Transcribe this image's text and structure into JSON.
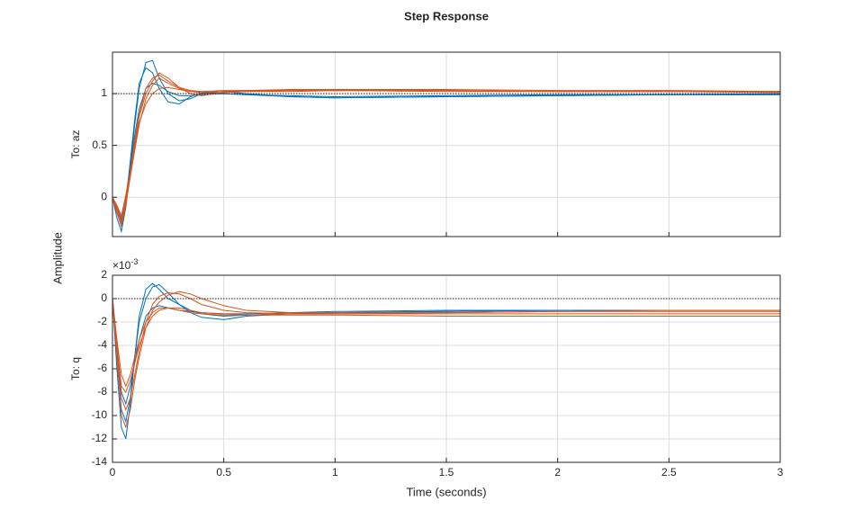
{
  "title": "Step Response",
  "xlabel": "Time (seconds)",
  "ylabel": "Amplitude",
  "chart_data": [
    {
      "type": "line",
      "ylabel": "To: az",
      "xlim": [
        0,
        3
      ],
      "ylim": [
        -0.38,
        1.4
      ],
      "xticks": [
        0,
        0.5,
        1,
        1.5,
        2,
        2.5,
        3
      ],
      "yticks": [
        0,
        0.5,
        1
      ],
      "show_xtick_labels": false,
      "grid": true,
      "reference_line": 1,
      "x": [
        0,
        0.02,
        0.04,
        0.06,
        0.08,
        0.1,
        0.12,
        0.15,
        0.18,
        0.21,
        0.25,
        0.3,
        0.35,
        0.4,
        0.5,
        0.6,
        0.8,
        1,
        1.5,
        2,
        2.5,
        3
      ],
      "series": [
        {
          "color": "#0072BD",
          "values": [
            0,
            -0.2,
            -0.33,
            -0.1,
            0.3,
            0.7,
            1.05,
            1.3,
            1.32,
            1.15,
            1.0,
            0.93,
            0.95,
            1.0,
            1.02,
            1.0,
            0.97,
            0.96,
            0.97,
            0.98,
            0.99,
            0.99
          ]
        },
        {
          "color": "#0072BD",
          "values": [
            0,
            -0.15,
            -0.28,
            -0.05,
            0.35,
            0.75,
            1.1,
            1.25,
            1.2,
            1.05,
            0.92,
            0.9,
            0.97,
            1.01,
            1.0,
            0.99,
            0.97,
            0.96,
            0.97,
            0.98,
            0.99,
            0.99
          ]
        },
        {
          "color": "#0072BD",
          "values": [
            0,
            -0.1,
            -0.22,
            0,
            0.3,
            0.6,
            0.85,
            1.05,
            1.1,
            1.08,
            1.02,
            0.98,
            0.98,
            0.99,
            1.0,
            0.99,
            0.98,
            0.97,
            0.98,
            0.99,
            0.99,
            1.0
          ]
        },
        {
          "color": "#D95319",
          "values": [
            0,
            -0.12,
            -0.25,
            -0.05,
            0.25,
            0.55,
            0.8,
            1.05,
            1.15,
            1.18,
            1.12,
            1.06,
            1.03,
            1.02,
            1.03,
            1.03,
            1.04,
            1.04,
            1.04,
            1.03,
            1.03,
            1.02
          ]
        },
        {
          "color": "#D95319",
          "values": [
            0,
            -0.1,
            -0.2,
            0,
            0.2,
            0.45,
            0.7,
            0.95,
            1.08,
            1.15,
            1.1,
            1.05,
            1.02,
            1.01,
            1.02,
            1.03,
            1.03,
            1.03,
            1.03,
            1.02,
            1.02,
            1.02
          ]
        },
        {
          "color": "#D95319",
          "values": [
            0,
            -0.15,
            -0.28,
            -0.08,
            0.2,
            0.5,
            0.78,
            1.0,
            1.12,
            1.2,
            1.15,
            1.06,
            1.0,
            0.98,
            1.01,
            1.02,
            1.03,
            1.03,
            1.03,
            1.02,
            1.02,
            1.02
          ]
        },
        {
          "color": "#D95319",
          "values": [
            0,
            -0.08,
            -0.18,
            0.02,
            0.25,
            0.5,
            0.72,
            0.9,
            1.0,
            1.05,
            1.06,
            1.04,
            1.02,
            1.01,
            1.02,
            1.02,
            1.02,
            1.03,
            1.02,
            1.02,
            1.02,
            1.01
          ]
        }
      ]
    },
    {
      "type": "line",
      "ylabel": "To: q",
      "multiplier": "×10",
      "multiplier_exponent": "-3",
      "xlim": [
        0,
        3
      ],
      "ylim": [
        -14,
        2
      ],
      "xticks": [
        0,
        0.5,
        1,
        1.5,
        2,
        2.5,
        3
      ],
      "yticks": [
        -14,
        -12,
        -10,
        -8,
        -6,
        -4,
        -2,
        0,
        2
      ],
      "show_xtick_labels": true,
      "grid": true,
      "reference_line": 0,
      "x": [
        0,
        0.02,
        0.04,
        0.06,
        0.08,
        0.1,
        0.12,
        0.15,
        0.18,
        0.21,
        0.25,
        0.3,
        0.35,
        0.4,
        0.5,
        0.6,
        0.8,
        1,
        1.5,
        2,
        2.5,
        3
      ],
      "series": [
        {
          "color": "#0072BD",
          "values": [
            0,
            -6,
            -11,
            -12,
            -9,
            -5,
            -1.5,
            0.8,
            1.3,
            0.8,
            0,
            -0.5,
            -1,
            -1.3,
            -1.5,
            -1.4,
            -1.3,
            -1.2,
            -1.1,
            -1.0,
            -1.0,
            -1.0
          ]
        },
        {
          "color": "#0072BD",
          "values": [
            0,
            -5,
            -9.5,
            -10.5,
            -8.5,
            -5,
            -2,
            0,
            1,
            1.2,
            0.5,
            -0.5,
            -1.2,
            -1.6,
            -1.8,
            -1.5,
            -1.3,
            -1.2,
            -1.1,
            -1.0,
            -1.0,
            -1.0
          ]
        },
        {
          "color": "#0072BD",
          "values": [
            0,
            -4,
            -8,
            -9,
            -7.5,
            -5.5,
            -3.5,
            -1.5,
            -0.8,
            -0.6,
            -0.8,
            -1,
            -1.1,
            -1.2,
            -1.3,
            -1.3,
            -1.2,
            -1.1,
            -1.0,
            -1.0,
            -1.0,
            -1.0
          ]
        },
        {
          "color": "#D95319",
          "values": [
            0,
            -4.5,
            -8.5,
            -9.5,
            -8.5,
            -6.5,
            -4.5,
            -2,
            -0.5,
            0.2,
            0.5,
            0.4,
            0,
            -0.5,
            -1,
            -1.2,
            -1.3,
            -1.3,
            -1.2,
            -1.1,
            -1.0,
            -1.0
          ]
        },
        {
          "color": "#D95319",
          "values": [
            0,
            -5,
            -10,
            -11,
            -9.5,
            -7,
            -5,
            -2.5,
            -1,
            -0.3,
            0.3,
            0.6,
            0.4,
            0,
            -0.6,
            -1,
            -1.2,
            -1.2,
            -1.2,
            -1.1,
            -1.1,
            -1.1
          ]
        },
        {
          "color": "#D95319",
          "values": [
            0,
            -3.5,
            -6.5,
            -7.5,
            -6.5,
            -5,
            -3.5,
            -2,
            -1.2,
            -0.8,
            -0.8,
            -1,
            -1.2,
            -1.3,
            -1.4,
            -1.4,
            -1.3,
            -1.3,
            -1.3,
            -1.3,
            -1.3,
            -1.3
          ]
        },
        {
          "color": "#D95319",
          "values": [
            0,
            -4,
            -7.5,
            -8,
            -7,
            -5.5,
            -4,
            -2.5,
            -1.5,
            -1,
            -0.8,
            -0.8,
            -1,
            -1.2,
            -1.3,
            -1.4,
            -1.4,
            -1.4,
            -1.5,
            -1.5,
            -1.5,
            -1.5
          ]
        }
      ]
    }
  ]
}
